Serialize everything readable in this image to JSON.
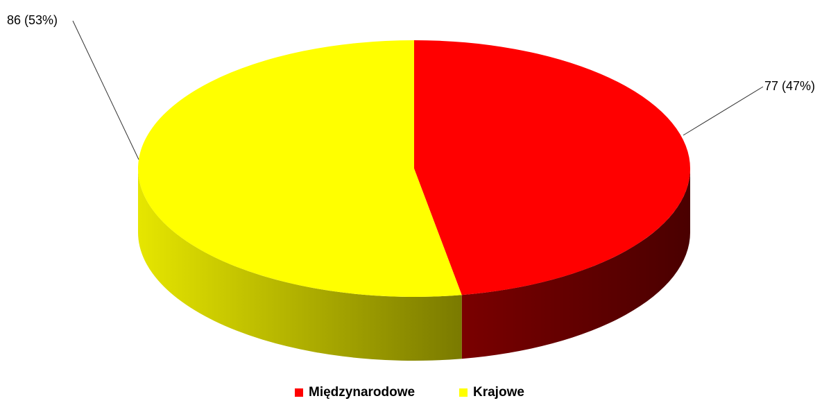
{
  "chart_data": {
    "type": "pie3d",
    "categories": [
      "Międzynarodowe",
      "Krajowe"
    ],
    "values": [
      77,
      86
    ],
    "value_labels": [
      "77 (47%)",
      "86 (53%)"
    ],
    "colors": [
      "#ff0000",
      "#ffff00"
    ],
    "legend": "bottom"
  }
}
